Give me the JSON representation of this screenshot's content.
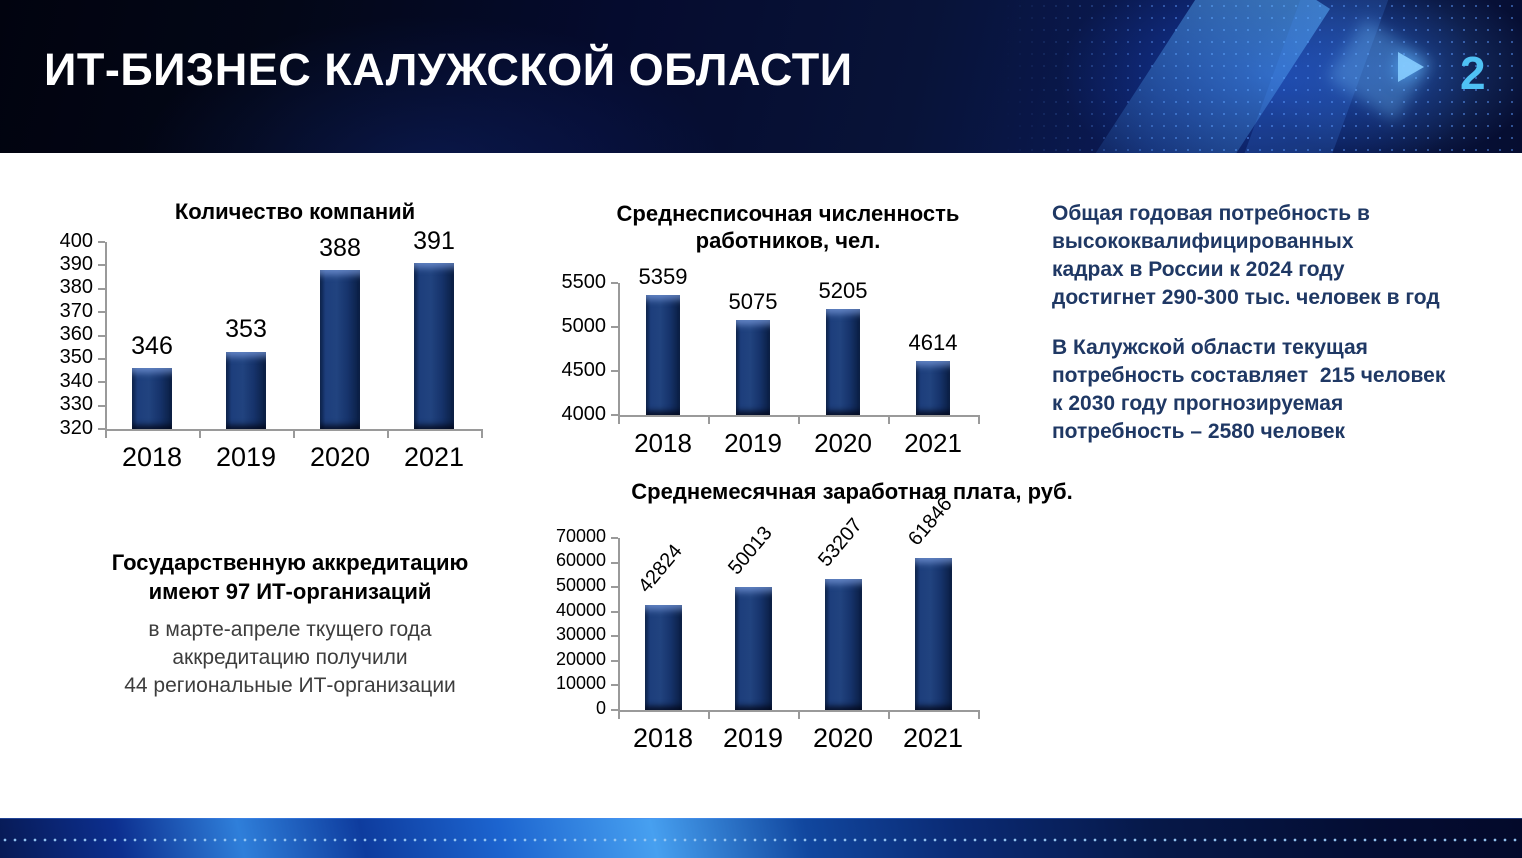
{
  "slide": {
    "title": "ИТ-БИЗНЕС КАЛУЖСКОЙ ОБЛАСТИ",
    "page_number": "2"
  },
  "accreditation": {
    "heading_lines": [
      "Государственную аккредитацию",
      "имеют 97 ИТ-организаций"
    ],
    "detail_lines": [
      "в марте-апреле ткущего года",
      "аккредитацию получили",
      "44 региональные ИТ-организации"
    ]
  },
  "demand": {
    "paragraph1_lines": [
      "Общая годовая потребность в",
      "высококвалифицированных",
      "кадрах в России к 2024 году",
      "достигнет 290-300 тыс. человек в год"
    ],
    "paragraph2_lines": [
      "В Калужской области текущая",
      "потребность составляет  215 человек",
      "к 2030 году прогнозируемая",
      "потребность – 2580 человек"
    ]
  },
  "colors": {
    "bar_fill": "#16336B",
    "header_background": "#060D30",
    "accent_text": "#1F3864",
    "page_number": "#4FC2F4",
    "axis_gray": "#9A9A9A"
  },
  "chart_data": [
    {
      "type": "bar",
      "title": "Количество компаний",
      "title_lines": [
        "Количество компаний"
      ],
      "categories": [
        "2018",
        "2019",
        "2020",
        "2021"
      ],
      "values": [
        346,
        353,
        388,
        391
      ],
      "ylim": [
        320,
        400
      ],
      "ytick_step": 10,
      "grid": false,
      "legend": "none",
      "value_label_rotation": 0
    },
    {
      "type": "bar",
      "title": "Среднесписочная численность работников, чел.",
      "title_lines": [
        "Среднесписочная численность",
        "работников, чел."
      ],
      "categories": [
        "2018",
        "2019",
        "2020",
        "2021"
      ],
      "values": [
        5359,
        5075,
        5205,
        4614
      ],
      "ylim": [
        4000,
        5500
      ],
      "ytick_step": 500,
      "grid": false,
      "legend": "none",
      "value_label_rotation": 0
    },
    {
      "type": "bar",
      "title": "Среднемесячная заработная плата, руб.",
      "title_lines": [
        "Среднемесячная заработная плата, руб."
      ],
      "categories": [
        "2018",
        "2019",
        "2020",
        "2021"
      ],
      "values": [
        42824,
        50013,
        53207,
        61846
      ],
      "ylim": [
        0,
        70000
      ],
      "ytick_step": 10000,
      "grid": false,
      "legend": "none",
      "value_label_rotation": -50
    }
  ]
}
